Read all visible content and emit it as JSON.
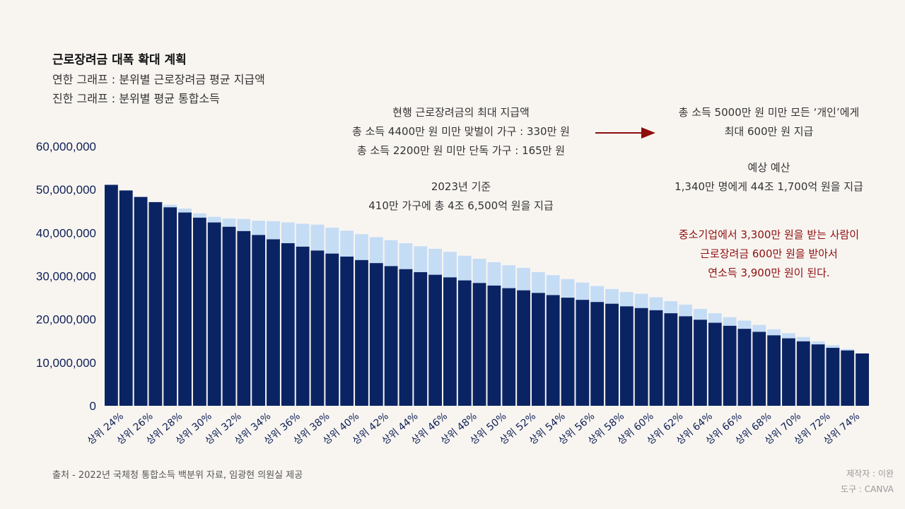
{
  "title": "근로장려금 대폭 확대 계획",
  "subtitle_light": "연한 그래프 : 분위별 근로장려금 평균 지급액",
  "subtitle_dark": "진한 그래프 : 분위별 평균 통합소득",
  "annotations": {
    "current": [
      "현행 근로장려금의 최대 지급액",
      "총 소득 4400만 원 미만 맞벌이 가구 : 330만 원",
      "총 소득 2200만 원 미만 단독 가구 : 165만 원"
    ],
    "base": [
      "2023년 기준",
      "410만 가구에 총 4조 6,500억 원을 지급"
    ],
    "new": [
      "총 소득 5000만 원 미만 모든 ‘개인’에게",
      "최대 600만 원 지급"
    ],
    "budget": [
      "예상 예산",
      "1,340만 명에게 44조 1,700억 원을 지급"
    ],
    "example": [
      "중소기업에서 3,300만 원을 받는 사람이",
      "근로장려금 600만 원을 받아서",
      "연소득 3,900만 원이 된다."
    ]
  },
  "footer": {
    "source": "출처 - 2022년 국체청 통합소득 백분위 자료, 임광현 의원실 제공",
    "maker": "제작자 : 이완",
    "tool": "도구 : CANVA"
  },
  "colors": {
    "income": "#0a2463",
    "benefit": "#c5dcf5",
    "arrow": "#8e0d0d",
    "axis_text": "#0f1f55"
  },
  "chart_data": {
    "type": "bar",
    "stacked": true,
    "ylim": [
      0,
      60000000
    ],
    "yticks": [
      "0",
      "10,000,000",
      "20,000,000",
      "30,000,000",
      "40,000,000",
      "50,000,000",
      "60,000,000"
    ],
    "categories": [
      "상위 24%",
      "상위 25%",
      "상위 26%",
      "상위 27%",
      "상위 28%",
      "상위 29%",
      "상위 30%",
      "상위 31%",
      "상위 32%",
      "상위 33%",
      "상위 34%",
      "상위 35%",
      "상위 36%",
      "상위 37%",
      "상위 38%",
      "상위 39%",
      "상위 40%",
      "상위 41%",
      "상위 42%",
      "상위 43%",
      "상위 44%",
      "상위 45%",
      "상위 46%",
      "상위 47%",
      "상위 48%",
      "상위 49%",
      "상위 50%",
      "상위 51%",
      "상위 52%",
      "상위 53%",
      "상위 54%",
      "상위 55%",
      "상위 56%",
      "상위 57%",
      "상위 58%",
      "상위 59%",
      "상위 60%",
      "상위 61%",
      "상위 62%",
      "상위 63%",
      "상위 64%",
      "상위 65%",
      "상위 66%",
      "상위 67%",
      "상위 68%",
      "상위 69%",
      "상위 70%",
      "상위 71%",
      "상위 72%",
      "상위 73%",
      "상위 74%",
      "상위 75%"
    ],
    "xtick_labels_shown": [
      "상위 24%",
      "상위 26%",
      "상위 28%",
      "상위 30%",
      "상위 32%",
      "상위 34%",
      "상위 36%",
      "상위 38%",
      "상위 40%",
      "상위 42%",
      "상위 44%",
      "상위 46%",
      "상위 48%",
      "상위 50%",
      "상위 52%",
      "상위 54%",
      "상위 56%",
      "상위 58%",
      "상위 60%",
      "상위 62%",
      "상위 64%",
      "상위 66%",
      "상위 68%",
      "상위 70%",
      "상위 72%",
      "상위 74%"
    ],
    "series": [
      {
        "name": "분위별 평균 통합소득",
        "values": [
          51100000,
          49800000,
          48300000,
          47100000,
          45900000,
          44700000,
          43500000,
          42400000,
          41400000,
          40400000,
          39500000,
          38500000,
          37600000,
          36800000,
          35900000,
          35200000,
          34500000,
          33700000,
          33000000,
          32300000,
          31600000,
          30900000,
          30300000,
          29700000,
          29000000,
          28400000,
          27800000,
          27200000,
          26700000,
          26100000,
          25600000,
          25000000,
          24500000,
          24000000,
          23600000,
          23000000,
          22600000,
          22100000,
          21400000,
          20700000,
          19900000,
          19200000,
          18500000,
          17800000,
          17100000,
          16300000,
          15600000,
          14900000,
          14200000,
          13400000,
          12800000,
          12100000
        ]
      },
      {
        "name": "분위별 근로장려금 평균 지급액",
        "values": [
          0,
          0,
          0,
          0,
          600000,
          900000,
          1000000,
          1300000,
          1900000,
          2800000,
          3300000,
          4200000,
          4800000,
          5300000,
          6000000,
          6000000,
          6000000,
          6000000,
          6000000,
          6000000,
          6000000,
          6000000,
          6000000,
          5900000,
          5700000,
          5600000,
          5400000,
          5300000,
          5200000,
          4800000,
          4600000,
          4300000,
          4000000,
          3700000,
          3400000,
          3300000,
          3300000,
          3000000,
          2800000,
          2700000,
          2500000,
          2200000,
          2000000,
          1900000,
          1600000,
          1400000,
          1200000,
          1000000,
          700000,
          600000,
          300000,
          0
        ]
      }
    ]
  }
}
